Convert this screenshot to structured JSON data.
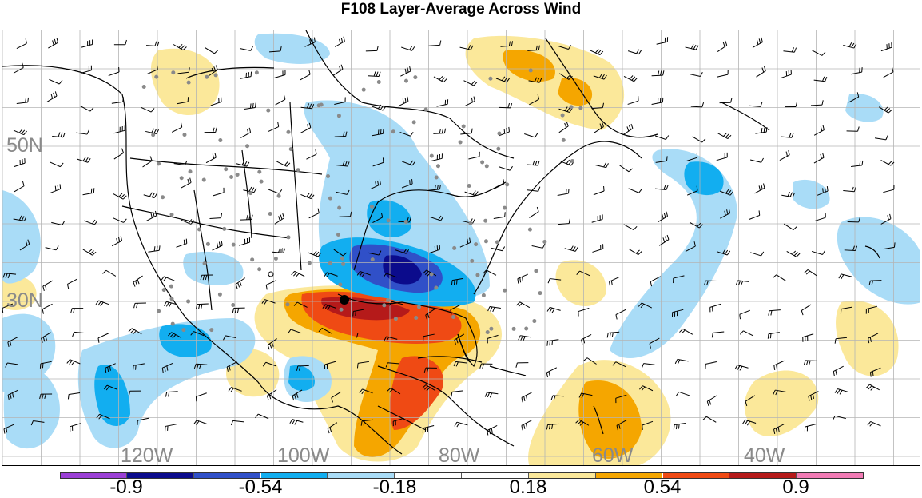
{
  "title": "F108 Layer-Average Across Wind",
  "map": {
    "lat_labels": [
      {
        "name": "lat-label-50n",
        "text": "50N"
      },
      {
        "name": "lat-label-30n",
        "text": "30N"
      }
    ],
    "lon_labels": [
      {
        "name": "lon-label-120w",
        "text": "120W"
      },
      {
        "name": "lon-label-100w",
        "text": "100W"
      },
      {
        "name": "lon-label-80w",
        "text": "80W"
      },
      {
        "name": "lon-label-60w",
        "text": "60W"
      },
      {
        "name": "lon-label-40w",
        "text": "40W"
      }
    ],
    "colors": {
      "grid": "#b4b4b4",
      "coast": "#000000",
      "station_dot": "#8a8a8a",
      "barb": "#000000"
    }
  },
  "colorbar": {
    "colors": [
      "#9b3fd6",
      "#0b0b8c",
      "#3050c8",
      "#12aef0",
      "#a9dcf7",
      "#ffffff",
      "#ffffff",
      "#fbe89a",
      "#f5a600",
      "#ef4a14",
      "#b51a1a",
      "#f27bb5"
    ],
    "tick_labels": [
      "-0.9",
      "-0.54",
      "-0.18",
      "0.18",
      "0.54",
      "0.9"
    ]
  }
}
